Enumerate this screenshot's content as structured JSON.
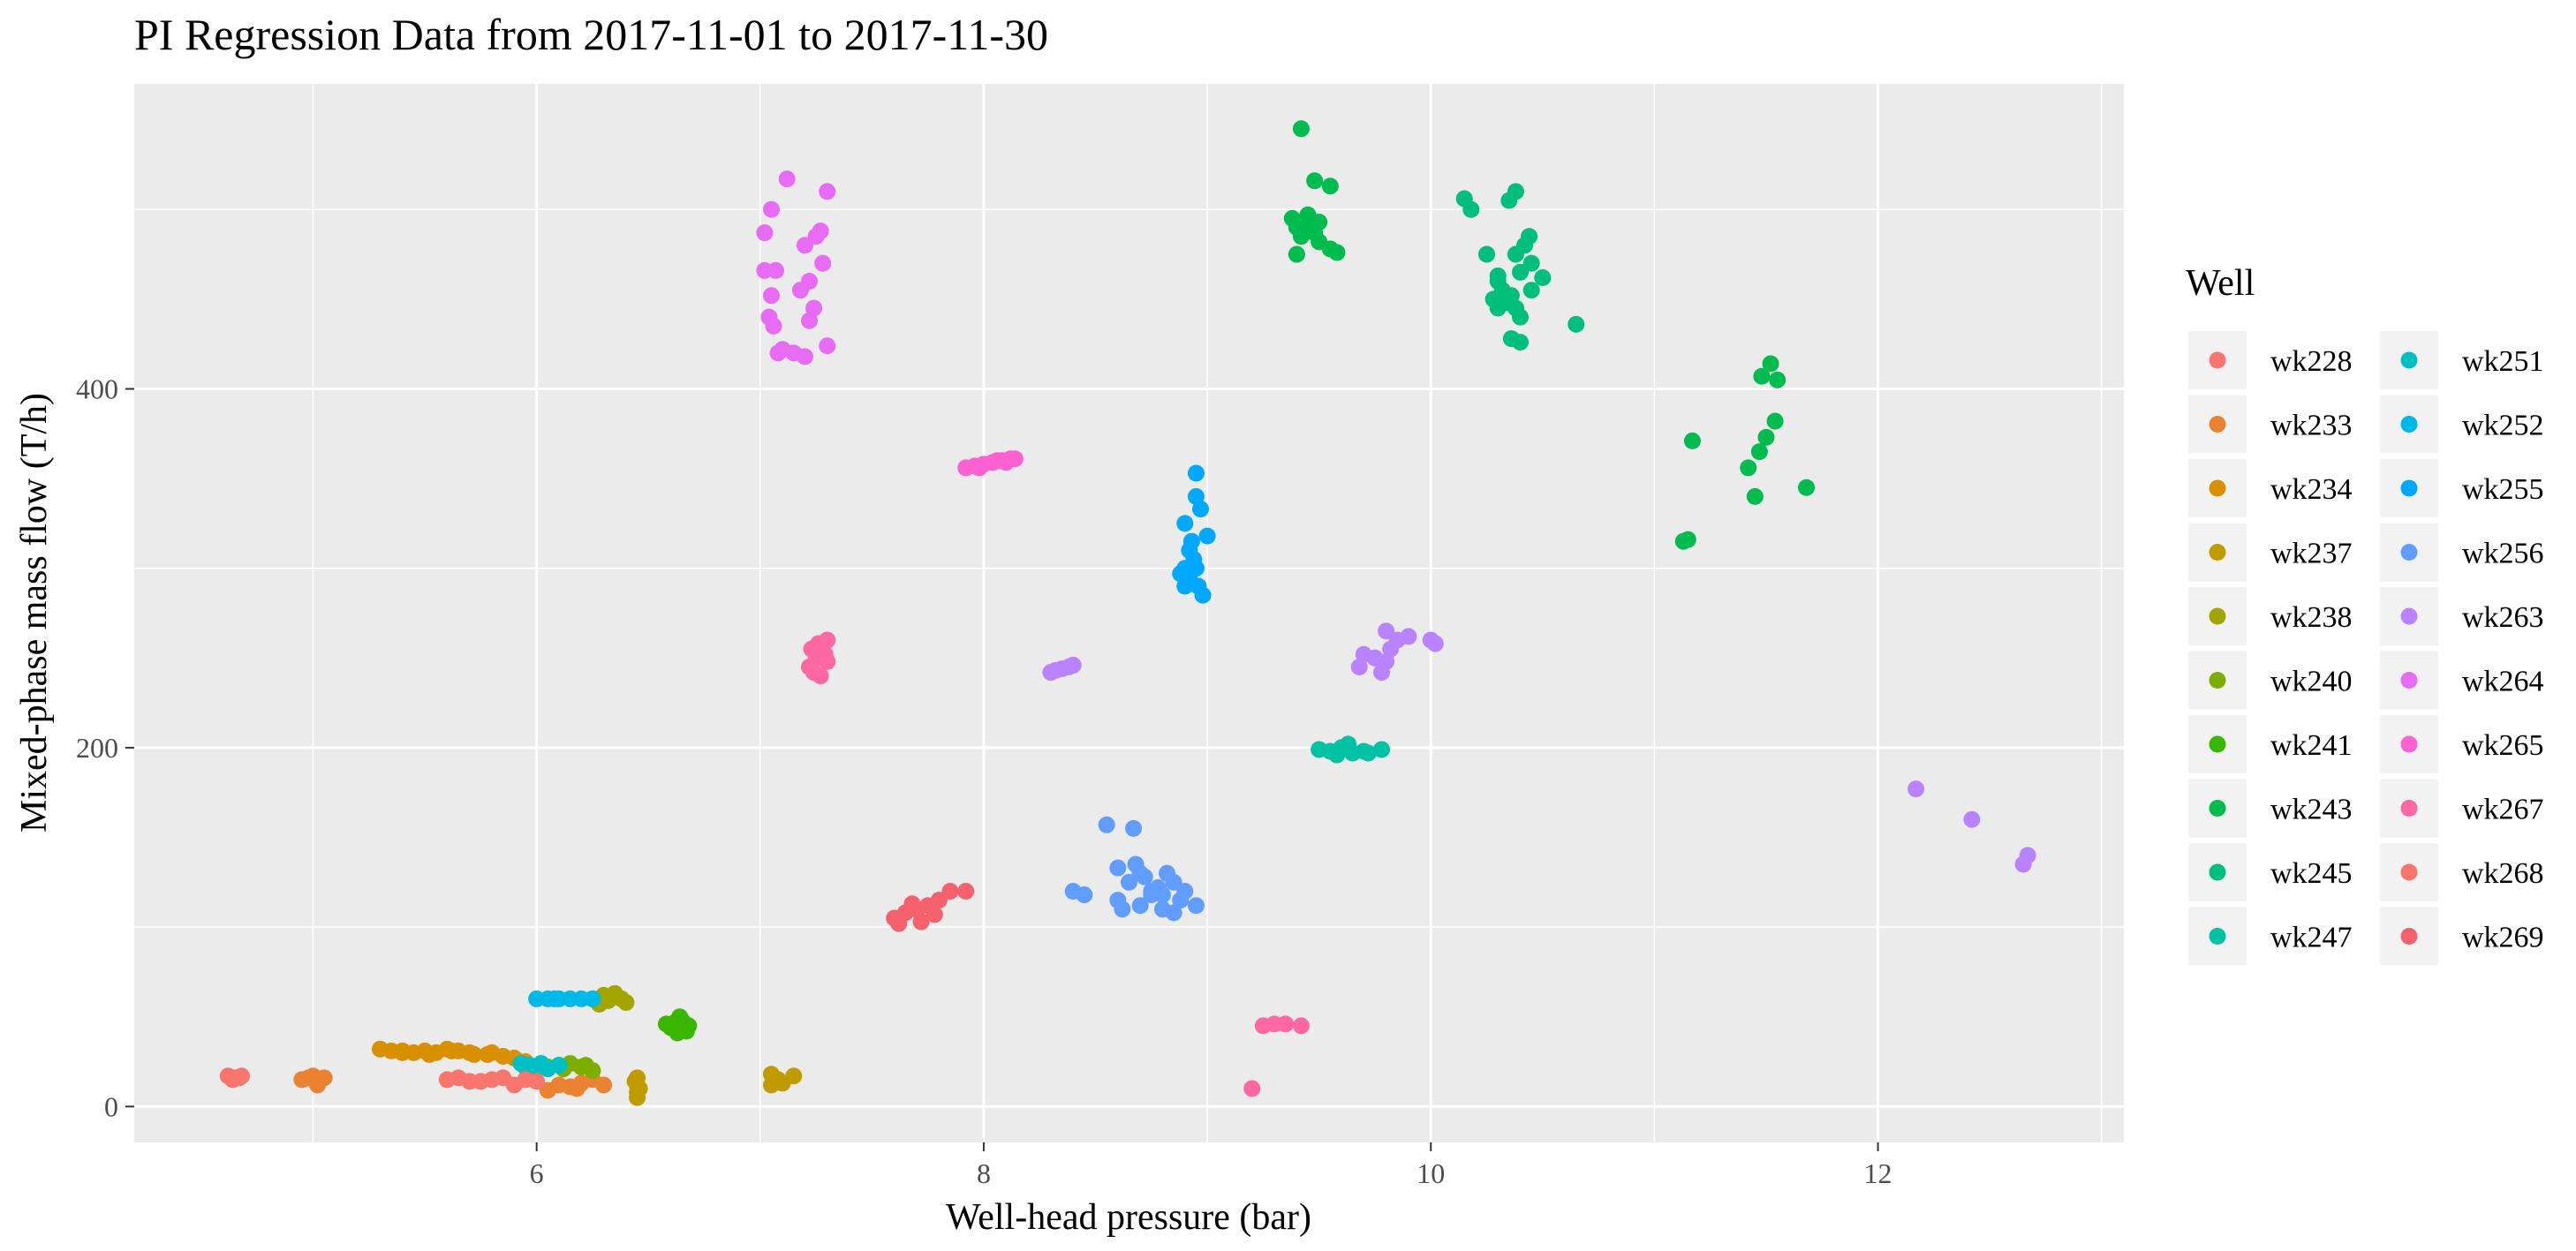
{
  "chart_data": {
    "type": "scatter",
    "title": "PI Regression Data from 2017-11-01 to 2017-11-30",
    "xlabel": "Well-head pressure (bar)",
    "ylabel": "Mixed-phase mass flow (T/h)",
    "xlim": [
      4.2,
      13.1
    ],
    "ylim": [
      -20,
      570
    ],
    "xticks": [
      6,
      8,
      10,
      12
    ],
    "yticks": [
      0,
      200,
      400
    ],
    "xtick_labels": [
      "6",
      "8",
      "10",
      "12"
    ],
    "ytick_labels": [
      "0",
      "200",
      "400"
    ],
    "grid": true,
    "legend_title": "Well",
    "legend_position": "right",
    "series": [
      {
        "name": "wk228",
        "color": "#F8766D",
        "points": [
          [
            4.62,
            17
          ],
          [
            4.65,
            16
          ],
          [
            4.67,
            16
          ],
          [
            4.64,
            15
          ],
          [
            4.68,
            17
          ]
        ]
      },
      {
        "name": "wk233",
        "color": "#EA8331",
        "points": [
          [
            4.95,
            15
          ],
          [
            4.98,
            16
          ],
          [
            5.0,
            17
          ],
          [
            5.02,
            12
          ],
          [
            5.05,
            16
          ],
          [
            5.03,
            15
          ],
          [
            6.05,
            9
          ],
          [
            6.1,
            12
          ],
          [
            6.15,
            11
          ],
          [
            6.2,
            13
          ],
          [
            6.25,
            15
          ],
          [
            6.3,
            12
          ],
          [
            6.18,
            10
          ]
        ]
      },
      {
        "name": "wk234",
        "color": "#D89000",
        "points": [
          [
            5.3,
            32
          ],
          [
            5.35,
            31
          ],
          [
            5.4,
            30
          ],
          [
            5.45,
            30
          ],
          [
            5.5,
            31
          ],
          [
            5.55,
            30
          ],
          [
            5.6,
            32
          ],
          [
            5.65,
            31
          ],
          [
            5.7,
            30
          ],
          [
            5.72,
            29
          ],
          [
            5.8,
            30
          ],
          [
            5.85,
            28
          ],
          [
            5.9,
            27
          ],
          [
            5.95,
            25
          ],
          [
            5.4,
            31
          ],
          [
            5.52,
            29
          ],
          [
            5.62,
            31
          ],
          [
            5.78,
            29
          ]
        ]
      },
      {
        "name": "wk237",
        "color": "#C09B00",
        "points": [
          [
            6.45,
            16
          ],
          [
            6.45,
            12
          ],
          [
            6.45,
            8
          ],
          [
            6.45,
            5
          ],
          [
            6.44,
            14
          ],
          [
            6.46,
            10
          ],
          [
            7.05,
            18
          ],
          [
            7.08,
            15
          ],
          [
            7.1,
            13
          ],
          [
            7.15,
            17
          ],
          [
            7.05,
            12
          ]
        ]
      },
      {
        "name": "wk238",
        "color": "#A3A500",
        "points": [
          [
            6.25,
            60
          ],
          [
            6.3,
            62
          ],
          [
            6.35,
            63
          ],
          [
            6.38,
            60
          ],
          [
            6.4,
            58
          ],
          [
            6.32,
            59
          ],
          [
            6.28,
            57
          ],
          [
            6.36,
            61
          ]
        ]
      },
      {
        "name": "wk240",
        "color": "#7CAE00",
        "points": [
          [
            6.0,
            21
          ],
          [
            6.05,
            22
          ],
          [
            6.1,
            23
          ],
          [
            6.15,
            24
          ],
          [
            6.2,
            22
          ],
          [
            6.25,
            20
          ],
          [
            6.12,
            21
          ],
          [
            6.22,
            23
          ]
        ]
      },
      {
        "name": "wk241",
        "color": "#39B600",
        "points": [
          [
            6.58,
            46
          ],
          [
            6.6,
            44
          ],
          [
            6.62,
            47
          ],
          [
            6.65,
            48
          ],
          [
            6.67,
            42
          ],
          [
            6.68,
            45
          ],
          [
            6.64,
            50
          ],
          [
            6.63,
            41
          ]
        ]
      },
      {
        "name": "wk243",
        "color": "#00BB4E",
        "points": [
          [
            9.42,
            545
          ],
          [
            9.48,
            516
          ],
          [
            9.55,
            513
          ],
          [
            9.38,
            495
          ],
          [
            9.4,
            490
          ],
          [
            9.45,
            497
          ],
          [
            9.5,
            493
          ],
          [
            9.42,
            485
          ],
          [
            9.5,
            482
          ],
          [
            9.55,
            478
          ],
          [
            9.58,
            476
          ],
          [
            9.4,
            475
          ],
          [
            9.45,
            492
          ],
          [
            9.48,
            487
          ],
          [
            11.15,
            316
          ],
          [
            11.17,
            371
          ],
          [
            11.42,
            356
          ],
          [
            11.45,
            340
          ],
          [
            11.47,
            365
          ],
          [
            11.5,
            373
          ],
          [
            11.52,
            414
          ],
          [
            11.54,
            382
          ],
          [
            11.55,
            405
          ],
          [
            11.48,
            407
          ],
          [
            11.68,
            345
          ],
          [
            11.13,
            315
          ]
        ]
      },
      {
        "name": "wk245",
        "color": "#00BF7D",
        "points": [
          [
            10.15,
            506
          ],
          [
            10.18,
            500
          ],
          [
            10.35,
            505
          ],
          [
            10.38,
            510
          ],
          [
            10.25,
            475
          ],
          [
            10.3,
            460
          ],
          [
            10.32,
            455
          ],
          [
            10.36,
            452
          ],
          [
            10.4,
            465
          ],
          [
            10.42,
            480
          ],
          [
            10.45,
            470
          ],
          [
            10.28,
            450
          ],
          [
            10.34,
            448
          ],
          [
            10.38,
            445
          ],
          [
            10.4,
            440
          ],
          [
            10.36,
            428
          ],
          [
            10.4,
            426
          ],
          [
            10.45,
            455
          ],
          [
            10.5,
            462
          ],
          [
            10.65,
            436
          ],
          [
            10.3,
            463
          ],
          [
            10.38,
            475
          ],
          [
            10.44,
            485
          ],
          [
            10.3,
            445
          ]
        ]
      },
      {
        "name": "wk247",
        "color": "#00C1A3",
        "points": [
          [
            9.5,
            199
          ],
          [
            9.55,
            198
          ],
          [
            9.6,
            200
          ],
          [
            9.65,
            197
          ],
          [
            9.7,
            198
          ],
          [
            9.63,
            202
          ],
          [
            9.72,
            197
          ],
          [
            9.78,
            199
          ],
          [
            9.58,
            196
          ]
        ]
      },
      {
        "name": "wk251",
        "color": "#00BFC4",
        "points": [
          [
            5.93,
            24
          ],
          [
            5.97,
            23
          ],
          [
            6.0,
            22
          ],
          [
            6.05,
            21
          ],
          [
            6.1,
            23
          ],
          [
            5.95,
            22
          ],
          [
            6.02,
            24
          ]
        ]
      },
      {
        "name": "wk252",
        "color": "#00B8E7",
        "points": [
          [
            6.0,
            60
          ],
          [
            6.05,
            60
          ],
          [
            6.1,
            60
          ],
          [
            6.15,
            60
          ],
          [
            6.2,
            60
          ],
          [
            6.25,
            60
          ],
          [
            6.08,
            60
          ]
        ]
      },
      {
        "name": "wk255",
        "color": "#00A9FF",
        "points": [
          [
            8.9,
            300
          ],
          [
            8.92,
            295
          ],
          [
            8.95,
            340
          ],
          [
            8.95,
            353
          ],
          [
            8.9,
            325
          ],
          [
            8.92,
            310
          ],
          [
            8.94,
            305
          ],
          [
            8.96,
            290
          ],
          [
            8.98,
            285
          ],
          [
            8.9,
            290
          ],
          [
            8.93,
            315
          ],
          [
            8.97,
            333
          ],
          [
            9.0,
            318
          ],
          [
            8.88,
            297
          ],
          [
            8.95,
            300
          ]
        ]
      },
      {
        "name": "wk256",
        "color": "#619CFF",
        "points": [
          [
            8.55,
            157
          ],
          [
            8.67,
            155
          ],
          [
            8.65,
            125
          ],
          [
            8.7,
            130
          ],
          [
            8.75,
            120
          ],
          [
            8.8,
            118
          ],
          [
            8.85,
            125
          ],
          [
            8.9,
            120
          ],
          [
            8.95,
            112
          ],
          [
            8.6,
            115
          ],
          [
            8.62,
            110
          ],
          [
            8.7,
            112
          ],
          [
            8.75,
            118
          ],
          [
            8.8,
            110
          ],
          [
            8.85,
            108
          ],
          [
            8.4,
            120
          ],
          [
            8.45,
            118
          ],
          [
            8.68,
            135
          ],
          [
            8.72,
            128
          ],
          [
            8.78,
            122
          ],
          [
            8.82,
            130
          ],
          [
            8.88,
            115
          ],
          [
            8.6,
            133
          ]
        ]
      },
      {
        "name": "wk263",
        "color": "#B983FF",
        "points": [
          [
            8.3,
            242
          ],
          [
            8.35,
            244
          ],
          [
            8.4,
            246
          ],
          [
            8.32,
            243
          ],
          [
            8.38,
            245
          ],
          [
            9.68,
            245
          ],
          [
            9.7,
            252
          ],
          [
            9.75,
            250
          ],
          [
            9.78,
            242
          ],
          [
            9.82,
            255
          ],
          [
            9.85,
            260
          ],
          [
            9.8,
            265
          ],
          [
            9.9,
            262
          ],
          [
            10.0,
            260
          ],
          [
            10.02,
            258
          ],
          [
            9.8,
            248
          ],
          [
            12.17,
            177
          ],
          [
            12.42,
            160
          ],
          [
            12.67,
            140
          ],
          [
            12.65,
            135
          ]
        ]
      },
      {
        "name": "wk264",
        "color": "#E76BF3",
        "points": [
          [
            7.12,
            517
          ],
          [
            7.3,
            510
          ],
          [
            7.05,
            500
          ],
          [
            7.02,
            487
          ],
          [
            7.2,
            480
          ],
          [
            7.25,
            485
          ],
          [
            7.27,
            488
          ],
          [
            7.28,
            470
          ],
          [
            7.22,
            460
          ],
          [
            7.18,
            455
          ],
          [
            7.05,
            452
          ],
          [
            7.04,
            440
          ],
          [
            7.06,
            435
          ],
          [
            7.1,
            422
          ],
          [
            7.08,
            420
          ],
          [
            7.15,
            420
          ],
          [
            7.2,
            418
          ],
          [
            7.22,
            438
          ],
          [
            7.3,
            424
          ],
          [
            7.02,
            466
          ],
          [
            7.07,
            466
          ],
          [
            7.24,
            445
          ]
        ]
      },
      {
        "name": "wk265",
        "color": "#FD61D1",
        "points": [
          [
            7.92,
            356
          ],
          [
            7.96,
            357
          ],
          [
            8.0,
            358
          ],
          [
            8.04,
            359
          ],
          [
            8.08,
            360
          ],
          [
            8.12,
            361
          ],
          [
            8.14,
            361
          ],
          [
            7.98,
            356
          ],
          [
            8.06,
            360
          ],
          [
            8.1,
            359
          ]
        ]
      },
      {
        "name": "wk267",
        "color": "#FF67A4",
        "points": [
          [
            7.22,
            245
          ],
          [
            7.25,
            250
          ],
          [
            7.28,
            255
          ],
          [
            7.3,
            260
          ],
          [
            7.27,
            240
          ],
          [
            7.24,
            242
          ],
          [
            7.29,
            252
          ],
          [
            7.26,
            258
          ],
          [
            7.3,
            248
          ],
          [
            7.23,
            255
          ],
          [
            9.25,
            45
          ],
          [
            9.3,
            46
          ],
          [
            9.35,
            46
          ],
          [
            9.42,
            45
          ],
          [
            9.2,
            10
          ]
        ]
      },
      {
        "name": "wk268",
        "color": "#F8766D",
        "points": [
          [
            5.6,
            15
          ],
          [
            5.65,
            16
          ],
          [
            5.75,
            14
          ],
          [
            5.8,
            15
          ],
          [
            5.85,
            16
          ],
          [
            5.9,
            12
          ],
          [
            5.95,
            15
          ],
          [
            6.0,
            14
          ],
          [
            5.7,
            14
          ]
        ]
      },
      {
        "name": "wk269",
        "color": "#F4606C",
        "points": [
          [
            7.6,
            105
          ],
          [
            7.65,
            108
          ],
          [
            7.7,
            110
          ],
          [
            7.75,
            112
          ],
          [
            7.8,
            115
          ],
          [
            7.85,
            120
          ],
          [
            7.72,
            103
          ],
          [
            7.78,
            107
          ],
          [
            7.68,
            113
          ],
          [
            7.92,
            120
          ],
          [
            7.62,
            102
          ]
        ]
      }
    ]
  }
}
